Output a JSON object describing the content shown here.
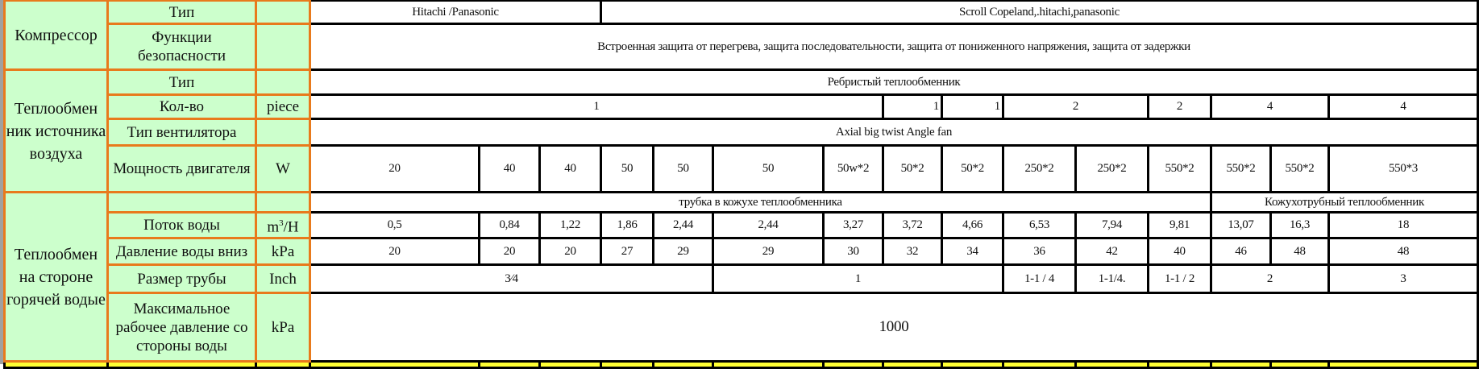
{
  "compressor": {
    "group": "Компрессор",
    "rows": [
      {
        "label": "Тип",
        "unit": "",
        "cells": [
          "Hitachi /Panasonic",
          "Scroll Copeland,.hitachi,panasonic"
        ]
      },
      {
        "label": "Функции безопасности",
        "unit": "",
        "cells": [
          "Встроенная защита от перегрева, защита последовательности, защита от пониженного напряжения, защита от задержки"
        ]
      }
    ]
  },
  "air_exchanger": {
    "group": "Теплообмен ник источника воздуха",
    "rows": [
      {
        "label": "Тип",
        "unit": "",
        "cells": [
          "Ребристый теплообменник"
        ]
      },
      {
        "label": "Кол-во",
        "unit": "piece",
        "cells": [
          "1",
          "1",
          "1",
          "2",
          "2",
          "4",
          "4"
        ]
      },
      {
        "label": "Тип вентилятора",
        "unit": "",
        "cells": [
          "Axial big twist Angle fan"
        ]
      },
      {
        "label": "Мощность двигателя",
        "unit": "W",
        "cells": [
          "20",
          "40",
          "40",
          "50",
          "50",
          "50",
          "50w*2",
          "50*2",
          "50*2",
          "250*2",
          "250*2",
          "550*2",
          "550*2",
          "550*2",
          "550*3"
        ]
      }
    ]
  },
  "water_exchanger": {
    "group": "Теплообмен на стороне горячей водые",
    "rows": [
      {
        "label": "",
        "unit": "",
        "cells": [
          "трубка в кожухе теплообменника",
          "Кожухотрубный теплообменник"
        ]
      },
      {
        "label": "Поток воды",
        "unit_base": "m",
        "unit_sup": "3",
        "unit_tail": "/H",
        "cells": [
          "0,5",
          "0,84",
          "1,22",
          "1,86",
          "2,44",
          "2,44",
          "3,27",
          "3,72",
          "4,66",
          "6,53",
          "7,94",
          "9,81",
          "13,07",
          "16,3",
          "18"
        ]
      },
      {
        "label": "Давление воды вниз",
        "unit": "kPa",
        "cells": [
          "20",
          "20",
          "20",
          "27",
          "29",
          "29",
          "30",
          "32",
          "34",
          "36",
          "42",
          "40",
          "46",
          "48",
          "48"
        ]
      },
      {
        "label": "Размер трубы",
        "unit": "Inch",
        "cells": [
          "3⁄4",
          "1",
          "1-1 / 4",
          "1-1/4.",
          "1-1 / 2",
          "2",
          "3"
        ]
      },
      {
        "label": "Максимальное рабочее давление со стороны воды",
        "unit": "kPa",
        "cells": [
          "1000"
        ]
      }
    ]
  },
  "colors": {
    "label_bg": "#ccffcc",
    "label_border": "#e87a1c",
    "data_border": "#000000",
    "next_row_bg": "#ffff33"
  }
}
